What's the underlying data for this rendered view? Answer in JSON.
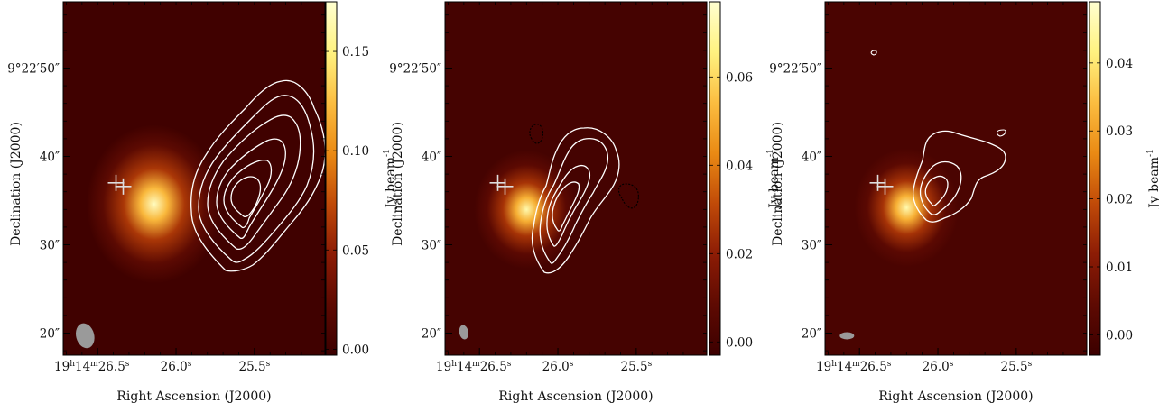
{
  "figure": {
    "colormap": [
      "#3c0000",
      "#5e0a02",
      "#8c1c05",
      "#c04a08",
      "#ea8a14",
      "#fbbd40",
      "#fff280",
      "#ffffd0"
    ],
    "contour_color": "#ffffff",
    "negative_contour_color": "#000000",
    "beam_color": "#9a9a9a",
    "marker_color": "#dddddd"
  },
  "chart_data": [
    {
      "type": "heatmap",
      "title": "",
      "xlabel": "Right Ascension (J2000)",
      "ylabel": "Declination (J2000)",
      "colorbar_label": "Jy beam",
      "colorbar_label_sup": "-1",
      "xlim": [
        26.72,
        25.05
      ],
      "ylim": [
        17.5,
        57.5
      ],
      "x_ticks": [
        {
          "value": 26.5,
          "h": "19",
          "m": "14",
          "s": "26.5"
        },
        {
          "value": 26.0,
          "s": "26.0"
        },
        {
          "value": 25.5,
          "s": "25.5"
        }
      ],
      "y_ticks": [
        {
          "value": 20,
          "label": "20″"
        },
        {
          "value": 30,
          "label": "30″"
        },
        {
          "value": 40,
          "label": "40″"
        },
        {
          "value": 50,
          "label": "9°22′50″"
        }
      ],
      "colorbar": {
        "min": -0.003,
        "max": 0.175,
        "ticks": [
          0.0,
          0.05,
          0.1,
          0.15
        ],
        "tick_labels": [
          "0.00",
          "0.05",
          "0.10",
          "0.15"
        ]
      },
      "peak": {
        "ra": 26.14,
        "dec": 34.6,
        "value": 0.17
      },
      "marker": {
        "ra": 26.36,
        "dec": 36.8
      },
      "beam": {
        "ra": 26.58,
        "dec": 19.7
      }
    },
    {
      "type": "heatmap",
      "title": "",
      "xlabel": "Right Ascension (J2000)",
      "ylabel": "Declination (J2000)",
      "colorbar_label": "Jy beam",
      "colorbar_label_sup": "-1",
      "xlim": [
        26.72,
        25.05
      ],
      "ylim": [
        17.5,
        57.5
      ],
      "x_ticks": [
        {
          "value": 26.5,
          "h": "19",
          "m": "14",
          "s": "26.5"
        },
        {
          "value": 26.0,
          "s": "26.0"
        },
        {
          "value": 25.5,
          "s": "25.5"
        }
      ],
      "y_ticks": [
        {
          "value": 20,
          "label": "20″"
        },
        {
          "value": 30,
          "label": "30″"
        },
        {
          "value": 40,
          "label": "40″"
        },
        {
          "value": 50,
          "label": "9°22′50″"
        }
      ],
      "colorbar": {
        "min": -0.003,
        "max": 0.077,
        "ticks": [
          0.0,
          0.02,
          0.04,
          0.06
        ],
        "tick_labels": [
          "0.00",
          "0.02",
          "0.04",
          "0.06"
        ]
      },
      "peak": {
        "ra": 26.2,
        "dec": 34.0,
        "value": 0.072
      },
      "marker": {
        "ra": 26.36,
        "dec": 36.8
      },
      "beam": {
        "ra": 26.6,
        "dec": 20.1
      }
    },
    {
      "type": "heatmap",
      "title": "",
      "xlabel": "Right Ascension (J2000)",
      "ylabel": "Declination (J2000)",
      "colorbar_label": "Jy beam",
      "colorbar_label_sup": "-1",
      "xlim": [
        26.72,
        25.05
      ],
      "ylim": [
        17.5,
        57.5
      ],
      "x_ticks": [
        {
          "value": 26.5,
          "h": "19",
          "m": "14",
          "s": "26.5"
        },
        {
          "value": 26.0,
          "s": "26.0"
        },
        {
          "value": 25.5,
          "s": "25.5"
        }
      ],
      "y_ticks": [
        {
          "value": 20,
          "label": "20″"
        },
        {
          "value": 30,
          "label": "30″"
        },
        {
          "value": 40,
          "label": "40″"
        },
        {
          "value": 50,
          "label": "9°22′50″"
        }
      ],
      "colorbar": {
        "min": -0.003,
        "max": 0.049,
        "ticks": [
          0.0,
          0.01,
          0.02,
          0.03,
          0.04
        ],
        "tick_labels": [
          "0.00",
          "0.01",
          "0.02",
          "0.03",
          "0.04"
        ]
      },
      "peak": {
        "ra": 26.2,
        "dec": 34.2,
        "value": 0.046
      },
      "marker": {
        "ra": 26.36,
        "dec": 36.8
      },
      "beam": {
        "ra": 26.58,
        "dec": 19.7
      }
    }
  ]
}
